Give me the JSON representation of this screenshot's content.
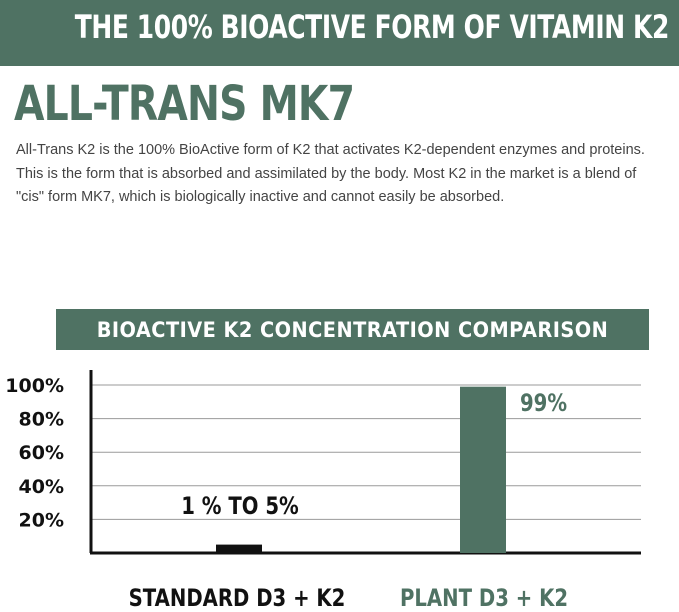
{
  "banner": {
    "text": "THE 100% BIOACTIVE FORM OF VITAMIN K2"
  },
  "headline": "ALL-TRANS MK7",
  "body_text": "All-Trans K2 is the 100% BioActive form of K2 that activates K2-dependent enzymes and proteins. This is the form that is absorbed and assimilated by the body. Most K2 in the market is a blend of \"cis\" form MK7, which is biologically inactive and cannot easily be absorbed.",
  "colors": {
    "brand_green": "#4f7263",
    "bar_standard": "#111111",
    "bar_plant": "#4f7263"
  },
  "chart_data": {
    "type": "bar",
    "title": "BIOACTIVE K2 CONCENTRATION COMPARISON",
    "xlabel": "",
    "ylabel": "",
    "ylim": [
      0,
      100
    ],
    "y_ticks": [
      20,
      40,
      60,
      80,
      100
    ],
    "y_tick_labels": [
      "20%",
      "40%",
      "60%",
      "80%",
      "100%"
    ],
    "grid": true,
    "categories": [
      "STANDARD D3 + K2",
      "PLANT D3 + K2"
    ],
    "values": [
      5,
      99
    ],
    "data_labels": [
      "1 % TO 5%",
      "99%"
    ]
  }
}
